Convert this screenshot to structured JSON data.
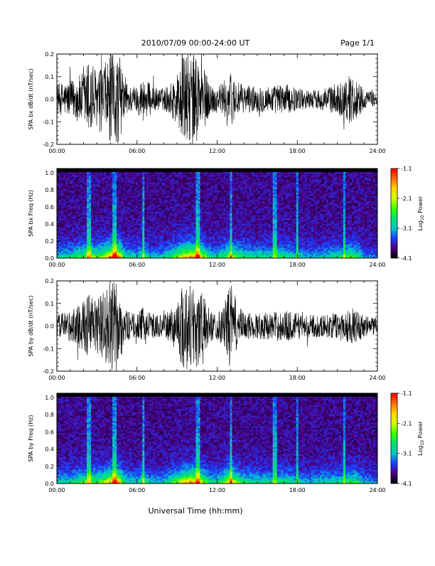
{
  "header": {
    "title": "2010/07/09  00:00-24:00 UT",
    "page": "Page 1/1"
  },
  "footer": {
    "xlabel": "Universal Time (hh:mm)"
  },
  "colorbar": {
    "label": "Log10 Power",
    "label_main": "Log",
    "label_sub": "10",
    "label_tail": " Power",
    "ticks": [
      "-1.1",
      "-2.1",
      "-3.1",
      "-4.1"
    ],
    "range": [
      -4.1,
      -1.1
    ],
    "colors": [
      "#000000",
      "#4b0082",
      "#1e3cff",
      "#00c8c8",
      "#00e070",
      "#40ff00",
      "#d0ff00",
      "#ffd200",
      "#ff6a00",
      "#ff0000"
    ]
  },
  "chart_data": [
    {
      "type": "line",
      "title": "",
      "ylabel": "SPA bx dB/dt (nT/sec)",
      "xlabel": "",
      "x_ticks": [
        "00:00",
        "06:00",
        "12:00",
        "18:00",
        "24:00"
      ],
      "xlim": [
        0,
        24
      ],
      "y_ticks": [
        "0.2",
        "0.1",
        "0.0",
        "-0.1",
        "-0.2"
      ],
      "ylim": [
        -0.2,
        0.2
      ],
      "line_color": "#000000",
      "envelope": {
        "hours": [
          0,
          1,
          1.5,
          2,
          2.5,
          3,
          3.5,
          4,
          4.3,
          4.7,
          5,
          5.5,
          6,
          6.5,
          7,
          7.5,
          8,
          8.5,
          9,
          9.5,
          10,
          10.5,
          11,
          11.5,
          12,
          12.5,
          13,
          13.5,
          14,
          15,
          16,
          17,
          18,
          19,
          20,
          21,
          22,
          22.5,
          23,
          24
        ],
        "amplitude": [
          0.07,
          0.08,
          0.1,
          0.12,
          0.2,
          0.12,
          0.15,
          0.2,
          0.2,
          0.2,
          0.09,
          0.06,
          0.06,
          0.1,
          0.07,
          0.05,
          0.05,
          0.07,
          0.12,
          0.2,
          0.2,
          0.2,
          0.14,
          0.07,
          0.06,
          0.08,
          0.12,
          0.08,
          0.06,
          0.06,
          0.06,
          0.07,
          0.05,
          0.04,
          0.05,
          0.07,
          0.11,
          0.09,
          0.04,
          0.03
        ]
      }
    },
    {
      "type": "heatmap",
      "title": "",
      "ylabel": "SPA bx Freq (Hz)",
      "xlabel": "",
      "x_ticks": [
        "00:00",
        "06:00",
        "12:00",
        "18:00",
        "24:00"
      ],
      "xlim": [
        0,
        24
      ],
      "y_ticks": [
        "1.0",
        "0.8",
        "0.6",
        "0.4",
        "0.2",
        "0.0"
      ],
      "ylim": [
        0,
        1.05
      ],
      "z_label": "Log10 Power",
      "zlim": [
        -4.1,
        -1.1
      ],
      "activity": {
        "hours": [
          0,
          1,
          1.5,
          2,
          2.5,
          3,
          3.5,
          4,
          4.3,
          4.7,
          5,
          5.5,
          6,
          6.5,
          7,
          7.5,
          8,
          8.5,
          9,
          9.5,
          10,
          10.5,
          11,
          11.5,
          12,
          12.5,
          13,
          13.5,
          14,
          15,
          16,
          17,
          18,
          19,
          20,
          21,
          22,
          22.5,
          23,
          24
        ],
        "level": [
          0.3,
          0.35,
          0.45,
          0.5,
          0.65,
          0.5,
          0.6,
          0.85,
          1.0,
          0.9,
          0.4,
          0.3,
          0.3,
          0.45,
          0.3,
          0.25,
          0.3,
          0.4,
          0.55,
          0.75,
          0.85,
          0.9,
          0.6,
          0.35,
          0.35,
          0.45,
          0.65,
          0.5,
          0.4,
          0.35,
          0.35,
          0.4,
          0.3,
          0.25,
          0.3,
          0.35,
          0.5,
          0.4,
          0.2,
          0.15
        ]
      },
      "stripe_hours": [
        2.4,
        4.3,
        6.5,
        10.6,
        13.0,
        16.3,
        18.0,
        21.5
      ]
    },
    {
      "type": "line",
      "title": "",
      "ylabel": "SPA by dB/dt (nT/sec)",
      "xlabel": "",
      "x_ticks": [
        "00:00",
        "06:00",
        "12:00",
        "18:00",
        "24:00"
      ],
      "xlim": [
        0,
        24
      ],
      "y_ticks": [
        "0.2",
        "0.1",
        "0.0",
        "-0.1",
        "-0.2"
      ],
      "ylim": [
        -0.2,
        0.2
      ],
      "line_color": "#000000",
      "envelope": {
        "hours": [
          0,
          1,
          1.5,
          2,
          2.5,
          3,
          3.5,
          4,
          4.3,
          4.7,
          5,
          5.5,
          6,
          6.5,
          7,
          7.5,
          8,
          8.5,
          9,
          9.5,
          10,
          10.5,
          11,
          11.5,
          12,
          12.5,
          13,
          13.5,
          14,
          15,
          16,
          17,
          18,
          19,
          20,
          21,
          22,
          22.5,
          23,
          24
        ],
        "amplitude": [
          0.05,
          0.07,
          0.09,
          0.11,
          0.16,
          0.12,
          0.16,
          0.2,
          0.2,
          0.19,
          0.08,
          0.06,
          0.05,
          0.09,
          0.06,
          0.05,
          0.05,
          0.07,
          0.12,
          0.2,
          0.2,
          0.2,
          0.13,
          0.07,
          0.06,
          0.09,
          0.2,
          0.1,
          0.06,
          0.06,
          0.06,
          0.07,
          0.06,
          0.05,
          0.05,
          0.06,
          0.08,
          0.07,
          0.05,
          0.04
        ]
      }
    },
    {
      "type": "heatmap",
      "title": "",
      "ylabel": "SPA by Freq (Hz)",
      "xlabel": "",
      "x_ticks": [
        "00:00",
        "06:00",
        "12:00",
        "18:00",
        "24:00"
      ],
      "xlim": [
        0,
        24
      ],
      "y_ticks": [
        "1.0",
        "0.8",
        "0.6",
        "0.4",
        "0.2",
        "0.0"
      ],
      "ylim": [
        0,
        1.05
      ],
      "z_label": "Log10 Power",
      "zlim": [
        -4.1,
        -1.1
      ],
      "activity": {
        "hours": [
          0,
          1,
          1.5,
          2,
          2.5,
          3,
          3.5,
          4,
          4.3,
          4.7,
          5,
          5.5,
          6,
          6.5,
          7,
          7.5,
          8,
          8.5,
          9,
          9.5,
          10,
          10.5,
          11,
          11.5,
          12,
          12.5,
          13,
          13.5,
          14,
          15,
          16,
          17,
          18,
          19,
          20,
          21,
          22,
          22.5,
          23,
          24
        ],
        "level": [
          0.3,
          0.35,
          0.4,
          0.5,
          0.55,
          0.5,
          0.6,
          0.8,
          0.9,
          0.85,
          0.4,
          0.3,
          0.3,
          0.45,
          0.3,
          0.25,
          0.3,
          0.4,
          0.55,
          0.75,
          0.85,
          0.85,
          0.6,
          0.35,
          0.35,
          0.5,
          0.9,
          0.55,
          0.4,
          0.35,
          0.35,
          0.4,
          0.3,
          0.25,
          0.3,
          0.35,
          0.45,
          0.4,
          0.25,
          0.2
        ]
      },
      "stripe_hours": [
        2.4,
        4.3,
        6.5,
        10.6,
        13.0,
        16.3,
        18.0,
        21.5
      ]
    }
  ]
}
